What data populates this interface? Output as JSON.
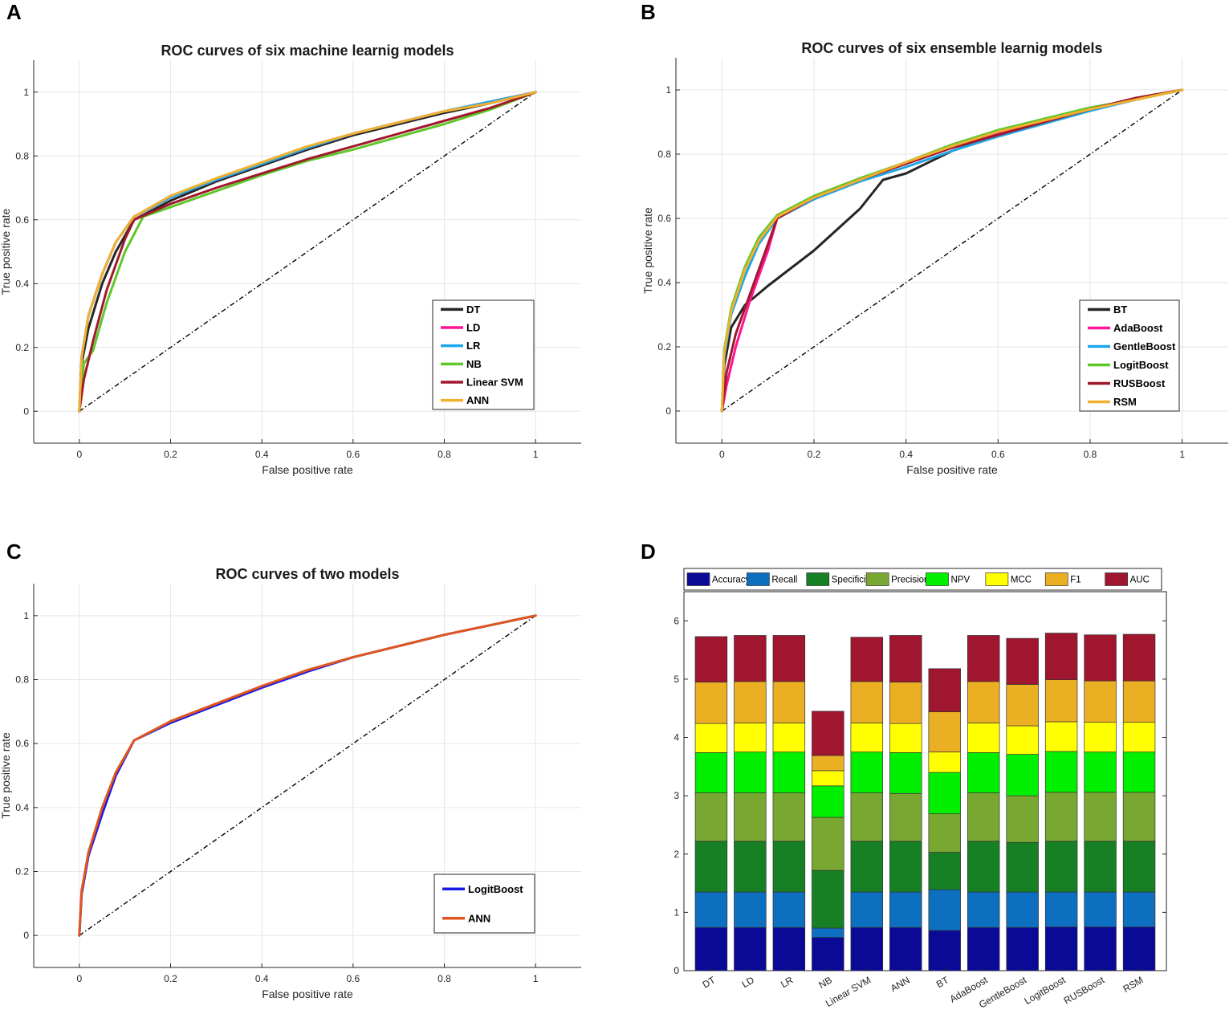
{
  "chart_data": [
    {
      "panel": "A",
      "type": "line",
      "title": "ROC curves of six machine learnig models",
      "xlabel": "False positive rate",
      "ylabel": "True positive rate",
      "xlim": [
        -0.1,
        1.1
      ],
      "ylim": [
        -0.1,
        1.1
      ],
      "xticks": [
        0,
        0.2,
        0.4,
        0.6,
        0.8,
        1
      ],
      "yticks": [
        0,
        0.2,
        0.4,
        0.6,
        0.8,
        1
      ],
      "grid": true,
      "legend_position": "lower-right",
      "diagonal": true,
      "series": [
        {
          "name": "DT",
          "color": "#262626",
          "x": [
            0,
            0.005,
            0.02,
            0.05,
            0.08,
            0.12,
            0.2,
            0.3,
            0.4,
            0.5,
            0.6,
            0.7,
            0.8,
            0.9,
            1
          ],
          "y": [
            0,
            0.15,
            0.26,
            0.4,
            0.5,
            0.6,
            0.66,
            0.72,
            0.77,
            0.82,
            0.865,
            0.9,
            0.935,
            0.965,
            1
          ]
        },
        {
          "name": "LD",
          "color": "#ff1493",
          "x": [
            0,
            0.005,
            0.02,
            0.05,
            0.08,
            0.12,
            0.2,
            0.3,
            0.4,
            0.5,
            0.6,
            0.7,
            0.8,
            0.9,
            1
          ],
          "y": [
            0,
            0.17,
            0.3,
            0.43,
            0.53,
            0.61,
            0.67,
            0.725,
            0.775,
            0.825,
            0.87,
            0.905,
            0.94,
            0.97,
            1
          ]
        },
        {
          "name": "LR",
          "color": "#1ea7e8",
          "x": [
            0,
            0.005,
            0.02,
            0.05,
            0.08,
            0.12,
            0.2,
            0.3,
            0.4,
            0.5,
            0.6,
            0.7,
            0.8,
            0.9,
            1
          ],
          "y": [
            0,
            0.17,
            0.3,
            0.43,
            0.53,
            0.61,
            0.67,
            0.725,
            0.775,
            0.825,
            0.87,
            0.905,
            0.94,
            0.97,
            1
          ]
        },
        {
          "name": "NB",
          "color": "#5ec72a",
          "x": [
            0,
            0.01,
            0.03,
            0.06,
            0.1,
            0.14,
            0.2,
            0.3,
            0.4,
            0.5,
            0.6,
            0.7,
            0.8,
            0.9,
            1
          ],
          "y": [
            0,
            0.15,
            0.19,
            0.34,
            0.5,
            0.61,
            0.64,
            0.69,
            0.74,
            0.785,
            0.82,
            0.86,
            0.9,
            0.945,
            1
          ]
        },
        {
          "name": "Linear SVM",
          "color": "#a0182c",
          "x": [
            0,
            0.01,
            0.03,
            0.06,
            0.1,
            0.12,
            0.2,
            0.3,
            0.4,
            0.5,
            0.6,
            0.7,
            0.8,
            0.9,
            1
          ],
          "y": [
            0,
            0.1,
            0.22,
            0.38,
            0.54,
            0.6,
            0.65,
            0.7,
            0.745,
            0.79,
            0.83,
            0.87,
            0.91,
            0.95,
            1
          ]
        },
        {
          "name": "ANN",
          "color": "#f0b030",
          "x": [
            0,
            0.005,
            0.02,
            0.05,
            0.08,
            0.12,
            0.2,
            0.3,
            0.4,
            0.5,
            0.6,
            0.7,
            0.8,
            0.9,
            1
          ],
          "y": [
            0,
            0.17,
            0.3,
            0.43,
            0.53,
            0.61,
            0.675,
            0.73,
            0.78,
            0.83,
            0.87,
            0.905,
            0.94,
            0.965,
            1
          ]
        }
      ]
    },
    {
      "panel": "B",
      "type": "line",
      "title": "ROC curves of six ensemble learnig models",
      "xlabel": "False positive rate",
      "ylabel": "True positive rate",
      "xlim": [
        -0.1,
        1.1
      ],
      "ylim": [
        -0.1,
        1.1
      ],
      "xticks": [
        0,
        0.2,
        0.4,
        0.6,
        0.8,
        1
      ],
      "yticks": [
        0,
        0.2,
        0.4,
        0.6,
        0.8,
        1
      ],
      "grid": true,
      "legend_position": "lower-right",
      "diagonal": true,
      "series": [
        {
          "name": "BT",
          "color": "#262626",
          "x": [
            0,
            0.005,
            0.02,
            0.05,
            0.1,
            0.2,
            0.3,
            0.35,
            0.4,
            0.5,
            0.6,
            0.7,
            0.8,
            0.9,
            1
          ],
          "y": [
            0,
            0.14,
            0.26,
            0.33,
            0.39,
            0.5,
            0.63,
            0.72,
            0.74,
            0.81,
            0.86,
            0.9,
            0.94,
            0.975,
            1
          ]
        },
        {
          "name": "AdaBoost",
          "color": "#ff1493",
          "x": [
            0,
            0.01,
            0.03,
            0.06,
            0.1,
            0.12,
            0.2,
            0.3,
            0.4,
            0.5,
            0.6,
            0.7,
            0.8,
            0.9,
            1
          ],
          "y": [
            0,
            0.08,
            0.2,
            0.34,
            0.5,
            0.6,
            0.66,
            0.72,
            0.77,
            0.82,
            0.865,
            0.9,
            0.94,
            0.97,
            1
          ]
        },
        {
          "name": "GentleBoost",
          "color": "#1ea7e8",
          "x": [
            0,
            0.005,
            0.02,
            0.05,
            0.08,
            0.12,
            0.2,
            0.3,
            0.4,
            0.5,
            0.6,
            0.7,
            0.8,
            0.9,
            1
          ],
          "y": [
            0,
            0.17,
            0.3,
            0.42,
            0.52,
            0.6,
            0.66,
            0.715,
            0.76,
            0.81,
            0.855,
            0.895,
            0.935,
            0.97,
            1
          ]
        },
        {
          "name": "LogitBoost",
          "color": "#5ec72a",
          "x": [
            0,
            0.005,
            0.02,
            0.05,
            0.08,
            0.12,
            0.2,
            0.3,
            0.4,
            0.5,
            0.6,
            0.7,
            0.8,
            0.9,
            1
          ],
          "y": [
            0,
            0.19,
            0.32,
            0.45,
            0.54,
            0.61,
            0.67,
            0.725,
            0.775,
            0.83,
            0.875,
            0.91,
            0.945,
            0.97,
            1
          ]
        },
        {
          "name": "RUSBoost",
          "color": "#a0182c",
          "x": [
            0,
            0.01,
            0.03,
            0.06,
            0.1,
            0.12,
            0.2,
            0.3,
            0.4,
            0.5,
            0.6,
            0.7,
            0.8,
            0.9,
            1
          ],
          "y": [
            0,
            0.12,
            0.24,
            0.36,
            0.52,
            0.6,
            0.665,
            0.72,
            0.77,
            0.82,
            0.86,
            0.9,
            0.94,
            0.975,
            1
          ]
        },
        {
          "name": "RSM",
          "color": "#f0b030",
          "x": [
            0,
            0.005,
            0.02,
            0.05,
            0.08,
            0.12,
            0.2,
            0.3,
            0.4,
            0.5,
            0.6,
            0.7,
            0.8,
            0.9,
            1
          ],
          "y": [
            0,
            0.18,
            0.31,
            0.44,
            0.53,
            0.605,
            0.665,
            0.72,
            0.775,
            0.825,
            0.87,
            0.905,
            0.94,
            0.97,
            1
          ]
        }
      ]
    },
    {
      "panel": "C",
      "type": "line",
      "title": "ROC curves of two models",
      "xlabel": "False positive rate",
      "ylabel": "True positive rate",
      "xlim": [
        -0.1,
        1.1
      ],
      "ylim": [
        -0.1,
        1.1
      ],
      "xticks": [
        0,
        0.2,
        0.4,
        0.6,
        0.8,
        1
      ],
      "yticks": [
        0,
        0.2,
        0.4,
        0.6,
        0.8,
        1
      ],
      "grid": true,
      "legend_position": "lower-right",
      "diagonal": true,
      "series": [
        {
          "name": "LogitBoost",
          "color": "#1a1ae6",
          "x": [
            0,
            0.005,
            0.02,
            0.05,
            0.08,
            0.12,
            0.2,
            0.3,
            0.4,
            0.5,
            0.6,
            0.7,
            0.8,
            0.9,
            1
          ],
          "y": [
            0,
            0.13,
            0.25,
            0.38,
            0.5,
            0.61,
            0.665,
            0.72,
            0.775,
            0.825,
            0.87,
            0.905,
            0.94,
            0.97,
            1
          ]
        },
        {
          "name": "ANN",
          "color": "#e0561c",
          "x": [
            0,
            0.005,
            0.02,
            0.05,
            0.08,
            0.12,
            0.2,
            0.3,
            0.4,
            0.5,
            0.6,
            0.7,
            0.8,
            0.9,
            1
          ],
          "y": [
            0,
            0.14,
            0.26,
            0.4,
            0.51,
            0.61,
            0.67,
            0.725,
            0.78,
            0.83,
            0.87,
            0.905,
            0.94,
            0.97,
            1
          ]
        }
      ]
    },
    {
      "panel": "D",
      "type": "bar",
      "stacked": true,
      "categories": [
        "DT",
        "LD",
        "LR",
        "NB",
        "Linear SVM",
        "ANN",
        "BT",
        "AdaBoost",
        "GentleBoost",
        "LogitBoost",
        "RUSBoost",
        "RSM"
      ],
      "ylim": [
        0,
        6.5
      ],
      "yticks": [
        0,
        1,
        2,
        3,
        4,
        5,
        6
      ],
      "grid": false,
      "legend_position": "top",
      "series": [
        {
          "name": "Accuracy",
          "color": "#0a0a96",
          "values": [
            0.74,
            0.74,
            0.74,
            0.57,
            0.74,
            0.74,
            0.69,
            0.74,
            0.74,
            0.75,
            0.75,
            0.75
          ]
        },
        {
          "name": "Recall",
          "color": "#0d6fbf",
          "values": [
            0.61,
            0.61,
            0.61,
            0.16,
            0.61,
            0.61,
            0.7,
            0.61,
            0.61,
            0.6,
            0.6,
            0.6
          ]
        },
        {
          "name": "Specificity",
          "color": "#178024",
          "values": [
            0.87,
            0.87,
            0.87,
            0.99,
            0.87,
            0.87,
            0.64,
            0.87,
            0.85,
            0.87,
            0.87,
            0.87
          ]
        },
        {
          "name": "Precision",
          "color": "#78a832",
          "values": [
            0.83,
            0.83,
            0.83,
            0.91,
            0.83,
            0.82,
            0.66,
            0.83,
            0.8,
            0.84,
            0.84,
            0.84
          ]
        },
        {
          "name": "NPV",
          "color": "#00f000",
          "values": [
            0.69,
            0.7,
            0.7,
            0.54,
            0.7,
            0.7,
            0.71,
            0.69,
            0.71,
            0.7,
            0.69,
            0.69
          ]
        },
        {
          "name": "MCC",
          "color": "#ffff00",
          "values": [
            0.5,
            0.5,
            0.5,
            0.26,
            0.5,
            0.5,
            0.35,
            0.51,
            0.49,
            0.51,
            0.51,
            0.51
          ]
        },
        {
          "name": "F1",
          "color": "#ebaf23",
          "values": [
            0.71,
            0.71,
            0.71,
            0.26,
            0.71,
            0.71,
            0.69,
            0.71,
            0.71,
            0.72,
            0.71,
            0.71
          ]
        },
        {
          "name": "AUC",
          "color": "#a0162e",
          "values": [
            0.78,
            0.79,
            0.79,
            0.76,
            0.76,
            0.8,
            0.74,
            0.79,
            0.79,
            0.8,
            0.79,
            0.8
          ]
        }
      ]
    }
  ]
}
